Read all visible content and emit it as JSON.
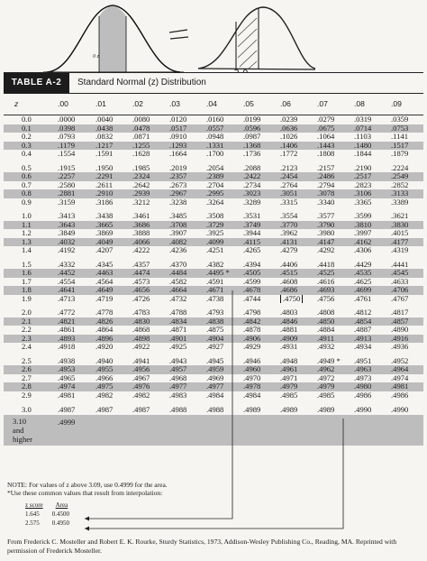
{
  "header": {
    "tag": "TABLE A-2",
    "title": "Standard Normal (z) Distribution",
    "columns": [
      "z",
      ".00",
      ".01",
      ".02",
      ".03",
      ".04",
      ".05",
      ".06",
      ".07",
      ".08",
      ".09"
    ]
  },
  "sketch": {
    "handwritten_label": "-2    0",
    "top_axis_label": "0    z"
  },
  "rows": [
    {
      "z": "0.0",
      "v": [
        ".0000",
        ".0040",
        ".0080",
        ".0120",
        ".0160",
        ".0199",
        ".0239",
        ".0279",
        ".0319",
        ".0359"
      ]
    },
    {
      "z": "0.1",
      "v": [
        ".0398",
        ".0438",
        ".0478",
        ".0517",
        ".0557",
        ".0596",
        ".0636",
        ".0675",
        ".0714",
        ".0753"
      ]
    },
    {
      "z": "0.2",
      "v": [
        ".0793",
        ".0832",
        ".0871",
        ".0910",
        ".0948",
        ".0987",
        ".1026",
        ".1064",
        ".1103",
        ".1141"
      ]
    },
    {
      "z": "0.3",
      "v": [
        ".1179",
        ".1217",
        ".1255",
        ".1293",
        ".1331",
        ".1368",
        ".1406",
        ".1443",
        ".1480",
        ".1517"
      ]
    },
    {
      "z": "0.4",
      "v": [
        ".1554",
        ".1591",
        ".1628",
        ".1664",
        ".1700",
        ".1736",
        ".1772",
        ".1808",
        ".1844",
        ".1879"
      ]
    },
    {
      "z": "0.5",
      "v": [
        ".1915",
        ".1950",
        ".1985",
        ".2019",
        ".2054",
        ".2088",
        ".2123",
        ".2157",
        ".2190",
        ".2224"
      ]
    },
    {
      "z": "0.6",
      "v": [
        ".2257",
        ".2291",
        ".2324",
        ".2357",
        ".2389",
        ".2422",
        ".2454",
        ".2486",
        ".2517",
        ".2549"
      ]
    },
    {
      "z": "0.7",
      "v": [
        ".2580",
        ".2611",
        ".2642",
        ".2673",
        ".2704",
        ".2734",
        ".2764",
        ".2794",
        ".2823",
        ".2852"
      ]
    },
    {
      "z": "0.8",
      "v": [
        ".2881",
        ".2910",
        ".2939",
        ".2967",
        ".2995",
        ".3023",
        ".3051",
        ".3078",
        ".3106",
        ".3133"
      ]
    },
    {
      "z": "0.9",
      "v": [
        ".3159",
        ".3186",
        ".3212",
        ".3238",
        ".3264",
        ".3289",
        ".3315",
        ".3340",
        ".3365",
        ".3389"
      ]
    },
    {
      "z": "1.0",
      "v": [
        ".3413",
        ".3438",
        ".3461",
        ".3485",
        ".3508",
        ".3531",
        ".3554",
        ".3577",
        ".3599",
        ".3621"
      ]
    },
    {
      "z": "1.1",
      "v": [
        ".3643",
        ".3665",
        ".3686",
        ".3708",
        ".3729",
        ".3749",
        ".3770",
        ".3790",
        ".3810",
        ".3830"
      ]
    },
    {
      "z": "1.2",
      "v": [
        ".3849",
        ".3869",
        ".3888",
        ".3907",
        ".3925",
        ".3944",
        ".3962",
        ".3980",
        ".3997",
        ".4015"
      ]
    },
    {
      "z": "1.3",
      "v": [
        ".4032",
        ".4049",
        ".4066",
        ".4082",
        ".4099",
        ".4115",
        ".4131",
        ".4147",
        ".4162",
        ".4177"
      ]
    },
    {
      "z": "1.4",
      "v": [
        ".4192",
        ".4207",
        ".4222",
        ".4236",
        ".4251",
        ".4265",
        ".4279",
        ".4292",
        ".4306",
        ".4319"
      ]
    },
    {
      "z": "1.5",
      "v": [
        ".4332",
        ".4345",
        ".4357",
        ".4370",
        ".4382",
        ".4394",
        ".4406",
        ".4418",
        ".4429",
        ".4441"
      ]
    },
    {
      "z": "1.6",
      "v": [
        ".4452",
        ".4463",
        ".4474",
        ".4484",
        ".4495 *",
        ".4505",
        ".4515",
        ".4525",
        ".4535",
        ".4545"
      ]
    },
    {
      "z": "1.7",
      "v": [
        ".4554",
        ".4564",
        ".4573",
        ".4582",
        ".4591",
        ".4599",
        ".4608",
        ".4616",
        ".4625",
        ".4633"
      ]
    },
    {
      "z": "1.8",
      "v": [
        ".4641",
        ".4649",
        ".4656",
        ".4664",
        ".4671",
        ".4678",
        ".4686",
        ".4693",
        ".4699",
        ".4706"
      ]
    },
    {
      "z": "1.9",
      "v": [
        ".4713",
        ".4719",
        ".4726",
        ".4732",
        ".4738",
        ".4744",
        ".4750",
        ".4756",
        ".4761",
        ".4767"
      ]
    },
    {
      "z": "2.0",
      "v": [
        ".4772",
        ".4778",
        ".4783",
        ".4788",
        ".4793",
        ".4798",
        ".4803",
        ".4808",
        ".4812",
        ".4817"
      ]
    },
    {
      "z": "2.1",
      "v": [
        ".4821",
        ".4826",
        ".4830",
        ".4834",
        ".4838",
        ".4842",
        ".4846",
        ".4850",
        ".4854",
        ".4857"
      ]
    },
    {
      "z": "2.2",
      "v": [
        ".4861",
        ".4864",
        ".4868",
        ".4871",
        ".4875",
        ".4878",
        ".4881",
        ".4884",
        ".4887",
        ".4890"
      ]
    },
    {
      "z": "2.3",
      "v": [
        ".4893",
        ".4896",
        ".4898",
        ".4901",
        ".4904",
        ".4906",
        ".4909",
        ".4911",
        ".4913",
        ".4916"
      ]
    },
    {
      "z": "2.4",
      "v": [
        ".4918",
        ".4920",
        ".4922",
        ".4925",
        ".4927",
        ".4929",
        ".4931",
        ".4932",
        ".4934",
        ".4936"
      ]
    },
    {
      "z": "2.5",
      "v": [
        ".4938",
        ".4940",
        ".4941",
        ".4943",
        ".4945",
        ".4946",
        ".4948",
        ".4949 *",
        ".4951",
        ".4952"
      ]
    },
    {
      "z": "2.6",
      "v": [
        ".4953",
        ".4955",
        ".4956",
        ".4957",
        ".4959",
        ".4960",
        ".4961",
        ".4962",
        ".4963",
        ".4964"
      ]
    },
    {
      "z": "2.7",
      "v": [
        ".4965",
        ".4966",
        ".4967",
        ".4968",
        ".4969",
        ".4970",
        ".4971",
        ".4972",
        ".4973",
        ".4974"
      ]
    },
    {
      "z": "2.8",
      "v": [
        ".4974",
        ".4975",
        ".4976",
        ".4977",
        ".4977",
        ".4978",
        ".4979",
        ".4979",
        ".4980",
        ".4981"
      ]
    },
    {
      "z": "2.9",
      "v": [
        ".4981",
        ".4982",
        ".4982",
        ".4983",
        ".4984",
        ".4984",
        ".4985",
        ".4985",
        ".4986",
        ".4986"
      ]
    },
    {
      "z": "3.0",
      "v": [
        ".4987",
        ".4987",
        ".4987",
        ".4988",
        ".4988",
        ".4989",
        ".4989",
        ".4989",
        ".4990",
        ".4990"
      ]
    }
  ],
  "last_row": {
    "z_lines": [
      "3.10",
      "and",
      "higher"
    ],
    "value": ".4999"
  },
  "notes": {
    "note1": "NOTE: For values of z above 3.09, use 0.4999 for the area.",
    "note2": "*Use these common values that result from interpolation:",
    "mini_headers": [
      "z score",
      "Area"
    ],
    "mini_rows": [
      [
        "1.645",
        "0.4500"
      ],
      [
        "2.575",
        "0.4950"
      ]
    ]
  },
  "source": "From Frederick C. Mosteller and Robert E. K. Rourke, Sturdy Statistics, 1973, Addison-Wesley Publishing Co., Reading, MA. Reprinted with permission of Frederick Mosteller."
}
